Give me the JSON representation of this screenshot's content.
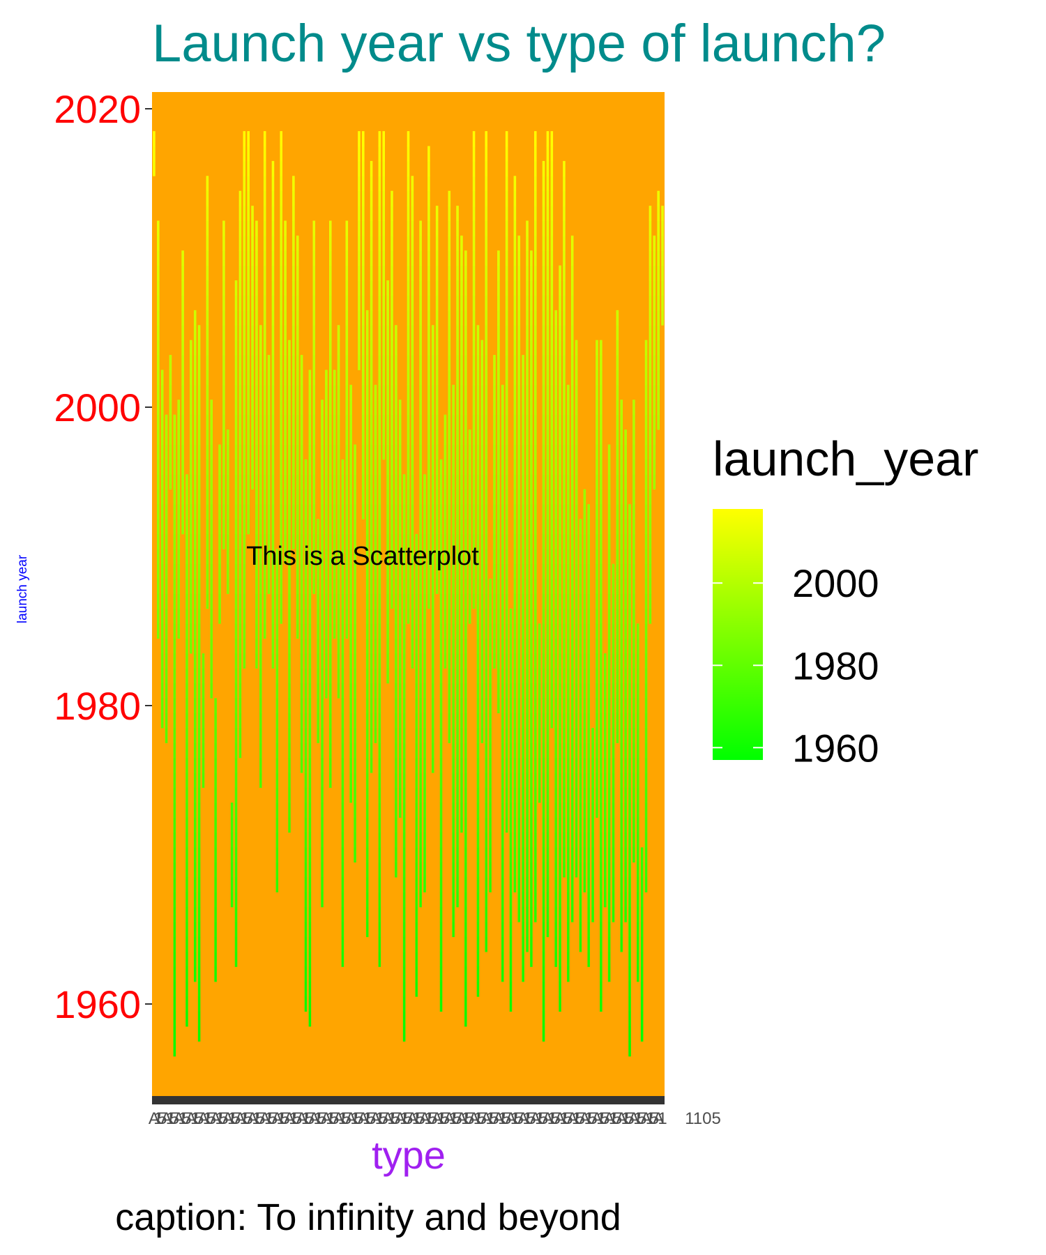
{
  "chart_data": {
    "type": "tile-scatter",
    "title": "Launch year vs type of launch?",
    "xlabel": "type",
    "ylabel": "launch year",
    "caption": "caption: To infinity and beyond",
    "annotation": {
      "text": "This is a Scatterplot",
      "y": 1990
    },
    "ylim": [
      1954,
      2021
    ],
    "y_ticks": [
      1960,
      1980,
      2000,
      2020
    ],
    "x_tick_label_fragments": [
      "A",
      "1",
      "5",
      "1105"
    ],
    "legend": {
      "title": "launch_year",
      "position": "right",
      "ticks": [
        2000,
        1980,
        1960
      ],
      "range": [
        1957,
        2018
      ],
      "low_color": "#00FF00",
      "high_color": "#FFFF00"
    },
    "colors": {
      "title": "#008B8B",
      "ylabel": "#0000FF",
      "xlabel": "#A020F0",
      "y_tick": "#FF0000",
      "panel": "#FFA500",
      "axis_line": "#333333"
    },
    "grid": false,
    "type_count": 125,
    "type_ranges": [
      [
        2016,
        2018
      ],
      [
        1985,
        2012
      ],
      [
        1979,
        2002
      ],
      [
        1978,
        1999
      ],
      [
        1995,
        2003
      ],
      [
        1957,
        1999
      ],
      [
        1985,
        2000
      ],
      [
        1992,
        2010
      ],
      [
        1959,
        1995
      ],
      [
        1984,
        2004
      ],
      [
        1962,
        2006
      ],
      [
        1958,
        2005
      ],
      [
        1975,
        1983
      ],
      [
        1987,
        2015
      ],
      [
        1981,
        2000
      ],
      [
        1962,
        1980
      ],
      [
        1986,
        1997
      ],
      [
        1991,
        2012
      ],
      [
        1988,
        1998
      ],
      [
        1967,
        1973
      ],
      [
        1963,
        2008
      ],
      [
        1977,
        2014
      ],
      [
        1983,
        2018
      ],
      [
        1992,
        2018
      ],
      [
        1995,
        2013
      ],
      [
        1983,
        2012
      ],
      [
        1975,
        2005
      ],
      [
        1985,
        2018
      ],
      [
        1988,
        2003
      ],
      [
        1983,
        2016
      ],
      [
        1968,
        1990
      ],
      [
        1986,
        2018
      ],
      [
        1990,
        2012
      ],
      [
        1972,
        2004
      ],
      [
        1991,
        2015
      ],
      [
        1985,
        2011
      ],
      [
        1976,
        2003
      ],
      [
        1960,
        1996
      ],
      [
        1959,
        2002
      ],
      [
        1988,
        2012
      ],
      [
        1978,
        1992
      ],
      [
        1967,
        2000
      ],
      [
        1981,
        2002
      ],
      [
        1975,
        2012
      ],
      [
        1985,
        2002
      ],
      [
        1981,
        2005
      ],
      [
        1963,
        1996
      ],
      [
        1985,
        2012
      ],
      [
        1974,
        2001
      ],
      [
        1970,
        1997
      ],
      [
        2003,
        2018
      ],
      [
        1993,
        2018
      ],
      [
        1965,
        2006
      ],
      [
        1976,
        2016
      ],
      [
        1978,
        2001
      ],
      [
        1963,
        2018
      ],
      [
        1997,
        2018
      ],
      [
        1982,
        2008
      ],
      [
        1987,
        2014
      ],
      [
        1969,
        2005
      ],
      [
        1973,
        2000
      ],
      [
        1958,
        1995
      ],
      [
        1986,
        2018
      ],
      [
        1983,
        2015
      ],
      [
        1961,
        1991
      ],
      [
        1967,
        2012
      ],
      [
        1968,
        1995
      ],
      [
        1987,
        2017
      ],
      [
        1976,
        2005
      ],
      [
        1988,
        2013
      ],
      [
        1960,
        1996
      ],
      [
        1983,
        1999
      ],
      [
        1978,
        2014
      ],
      [
        1965,
        2001
      ],
      [
        1967,
        2013
      ],
      [
        1972,
        2011
      ],
      [
        1959,
        2010
      ],
      [
        1986,
        1998
      ],
      [
        1987,
        2018
      ],
      [
        1961,
        2005
      ],
      [
        1978,
        2004
      ],
      [
        1964,
        2018
      ],
      [
        1968,
        1988
      ],
      [
        1983,
        2003
      ],
      [
        1980,
        2010
      ],
      [
        1962,
        2001
      ],
      [
        1972,
        2018
      ],
      [
        1960,
        1986
      ],
      [
        1968,
        2015
      ],
      [
        1966,
        2011
      ],
      [
        1962,
        2003
      ],
      [
        1964,
        2012
      ],
      [
        1963,
        2010
      ],
      [
        1966,
        2018
      ],
      [
        1974,
        1985
      ],
      [
        1958,
        2016
      ],
      [
        1965,
        2018
      ],
      [
        1979,
        2018
      ],
      [
        1963,
        2006
      ],
      [
        1960,
        2009
      ],
      [
        1969,
        2016
      ],
      [
        1962,
        2001
      ],
      [
        1966,
        2011
      ],
      [
        1969,
        2004
      ],
      [
        1964,
        1992
      ],
      [
        1968,
        1994
      ],
      [
        1963,
        1993
      ],
      [
        1966,
        1978
      ],
      [
        1973,
        2004
      ],
      [
        1960,
        2004
      ],
      [
        1967,
        1983
      ],
      [
        1962,
        1997
      ],
      [
        1966,
        1989
      ],
      [
        1978,
        2006
      ],
      [
        1964,
        2000
      ],
      [
        1966,
        1998
      ],
      [
        1957,
        1993
      ],
      [
        1970,
        2000
      ],
      [
        1962,
        1985
      ],
      [
        1958,
        1970
      ],
      [
        1968,
        2004
      ],
      [
        1986,
        2013
      ],
      [
        1995,
        2011
      ],
      [
        1999,
        2014
      ],
      [
        2006,
        2013
      ]
    ]
  }
}
